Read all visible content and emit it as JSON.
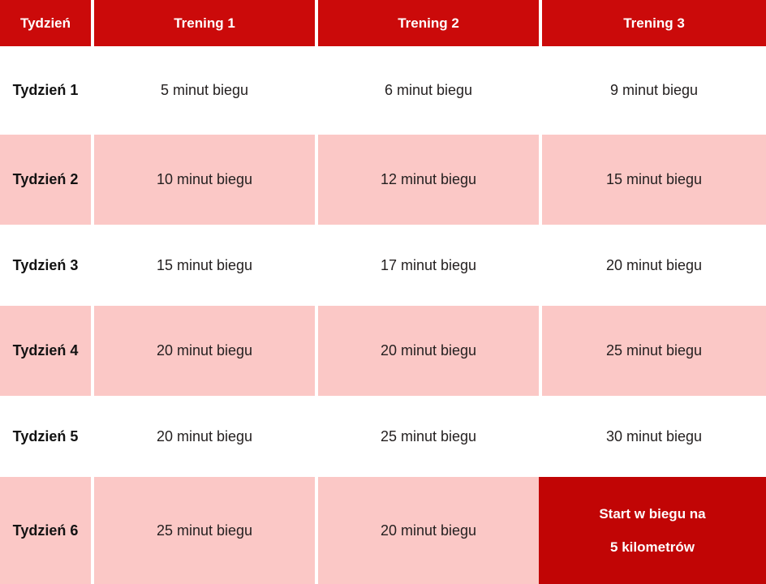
{
  "colors": {
    "header_red": "#CB0A0A",
    "final_red": "#C10505",
    "row_pink": "#FBC8C6",
    "row_white": "#FFFFFF",
    "header_text": "#FFFFFF",
    "body_text": "#231F1F"
  },
  "table": {
    "headers": [
      "Tydzień",
      "Trening 1",
      "Trening 2",
      "Trening 3"
    ],
    "rows": [
      {
        "week": "Tydzień 1",
        "trening1": "5 minut biegu",
        "trening2": "6 minut biegu",
        "trening3": "9 minut biegu"
      },
      {
        "week": "Tydzień 2",
        "trening1": "10 minut biegu",
        "trening2": "12 minut biegu",
        "trening3": "15 minut biegu"
      },
      {
        "week": "Tydzień 3",
        "trening1": "15 minut biegu",
        "trening2": "17 minut biegu",
        "trening3": "20 minut biegu"
      },
      {
        "week": "Tydzień 4",
        "trening1": "20 minut biegu",
        "trening2": "20 minut biegu",
        "trening3": "25 minut biegu"
      },
      {
        "week": "Tydzień 5",
        "trening1": "20 minut biegu",
        "trening2": "25 minut biegu",
        "trening3": "30 minut biegu"
      },
      {
        "week": "Tydzień 6",
        "trening1": "25 minut biegu",
        "trening2": "20 minut biegu",
        "trening3_lines": [
          "Start w biegu na",
          "5 kilometrów"
        ]
      }
    ]
  },
  "chart_data": {
    "type": "table",
    "title": "",
    "columns": [
      "Tydzień",
      "Trening 1",
      "Trening 2",
      "Trening 3"
    ],
    "rows": [
      [
        "Tydzień 1",
        "5 minut biegu",
        "6 minut biegu",
        "9 minut biegu"
      ],
      [
        "Tydzień 2",
        "10 minut biegu",
        "12 minut biegu",
        "15 minut biegu"
      ],
      [
        "Tydzień 3",
        "15 minut biegu",
        "17 minut biegu",
        "20 minut biegu"
      ],
      [
        "Tydzień 4",
        "20 minut biegu",
        "20 minut biegu",
        "25 minut biegu"
      ],
      [
        "Tydzień 5",
        "20 minut biegu",
        "25 minut biegu",
        "30 minut biegu"
      ],
      [
        "Tydzień 6",
        "25 minut biegu",
        "20 minut biegu",
        "Start w biegu na 5 kilometrów"
      ]
    ],
    "run_minutes": {
      "categories": [
        "Tydzień 1",
        "Tydzień 2",
        "Tydzień 3",
        "Tydzień 4",
        "Tydzień 5",
        "Tydzień 6"
      ],
      "series": [
        {
          "name": "Trening 1",
          "values": [
            5,
            10,
            15,
            20,
            20,
            25
          ]
        },
        {
          "name": "Trening 2",
          "values": [
            6,
            12,
            17,
            20,
            25,
            20
          ]
        },
        {
          "name": "Trening 3",
          "values": [
            9,
            15,
            20,
            25,
            30,
            null
          ]
        }
      ],
      "note_final_cell": "Start w biegu na 5 kilometrów"
    }
  }
}
